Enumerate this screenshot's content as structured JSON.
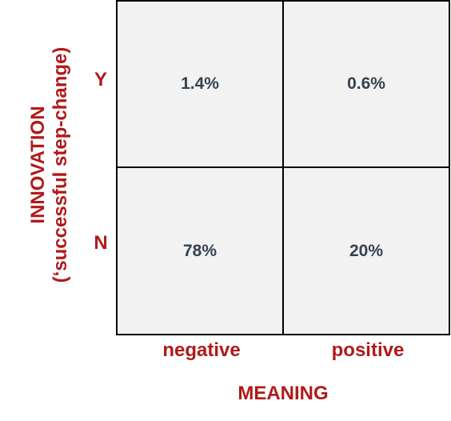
{
  "matrix": {
    "y_title": "INNOVATION",
    "y_subtitle": "(‘successful step-change)",
    "x_title": "MEANING",
    "rows": [
      "Y",
      "N"
    ],
    "columns": [
      "negative",
      "positive"
    ],
    "cells": [
      [
        "1.4%",
        "0.6%"
      ],
      [
        "78%",
        "20%"
      ]
    ]
  },
  "colors": {
    "label": "#b01a1a",
    "value_text": "#364150",
    "cell_fill": "#f2f2f2",
    "border": "#000000"
  }
}
